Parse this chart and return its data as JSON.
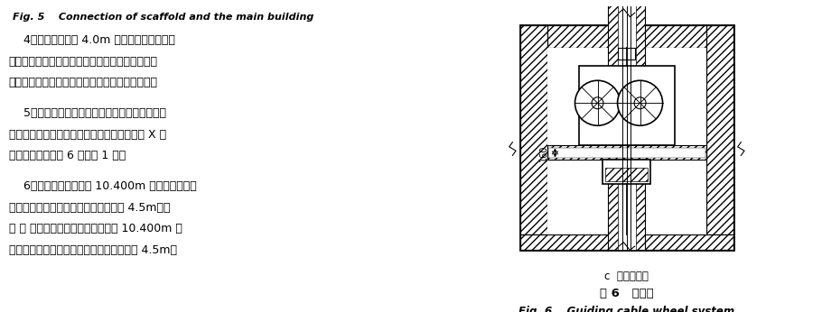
{
  "bg_color": "#ffffff",
  "fig_width": 9.1,
  "fig_height": 3.46,
  "dpi": 100,
  "left_panel": {
    "caption_en": "Fig. 5    Connection of scaffold and the main building",
    "para1": "    4）外脚手架预留 4.0m 宽的玻璃垂直运输通道，通道内水平小横杆不向玻璃面挑出，与外架内立杆齐平，保证玻璃能从幕墙下部垂直运至顶部。",
    "para2": "    5）为保证架体稳定，内、外脚手架要设置横向斜撑；横向斜撑应在同一节间，由底至顶层呈 X 字形连继布置，每陀6跨设置 1 道。",
    "para3_l1": "    6）内、外脚手架要与 10.400m 标高的通长钉横",
    "para3_l2": "梁和顶部通长钉横梁拉接，拉接间距为 4.5m。在",
    "para3_l3": "Ⓡ～ Ⓡ轴内、外脚手架还应增加与 10.400m 上",
    "para3_l4": "一层的拱形通长钉彩带进行拉接，拉接间距 4.5m。"
  },
  "right_panel": {
    "subcaption_cn": "c  导索轮系统",
    "caption_cn": "图 6   导索轮",
    "caption_en": "Fig. 6    Guiding cable wheel system",
    "dim_label": "160"
  }
}
